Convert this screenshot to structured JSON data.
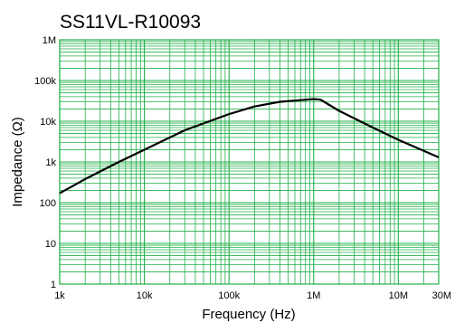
{
  "chart_data": {
    "type": "line",
    "title": "SS11VL-R10093",
    "xlabel": "Frequency (Hz)",
    "ylabel": "Impedance (Ω)",
    "x_scale": "log",
    "y_scale": "log",
    "xlim": [
      1000,
      30000000
    ],
    "ylim": [
      1,
      1000000
    ],
    "grid": true,
    "x_ticks": [
      {
        "value": 1000,
        "label": "1k"
      },
      {
        "value": 10000,
        "label": "10k"
      },
      {
        "value": 100000,
        "label": "100k"
      },
      {
        "value": 1000000,
        "label": "1M"
      },
      {
        "value": 10000000,
        "label": "10M"
      },
      {
        "value": 30000000,
        "label": "30M"
      }
    ],
    "y_ticks": [
      {
        "value": 1,
        "label": "1"
      },
      {
        "value": 10,
        "label": "10"
      },
      {
        "value": 100,
        "label": "100"
      },
      {
        "value": 1000,
        "label": "1k"
      },
      {
        "value": 10000,
        "label": "10k"
      },
      {
        "value": 100000,
        "label": "100k"
      },
      {
        "value": 1000000,
        "label": "1M"
      }
    ],
    "series": [
      {
        "x": [
          1000,
          2000,
          5000,
          10000,
          30000,
          100000,
          200000,
          400000,
          700000,
          1000000,
          1200000,
          2000000,
          5000000,
          10000000,
          30000000
        ],
        "y": [
          170,
          380,
          1000,
          2000,
          6000,
          15000,
          23000,
          30000,
          33000,
          35000,
          34000,
          18000,
          7000,
          3500,
          1300
        ]
      }
    ],
    "colors": {
      "grid": "#22b04a",
      "line": "#000000",
      "background": "#ffffff"
    }
  }
}
